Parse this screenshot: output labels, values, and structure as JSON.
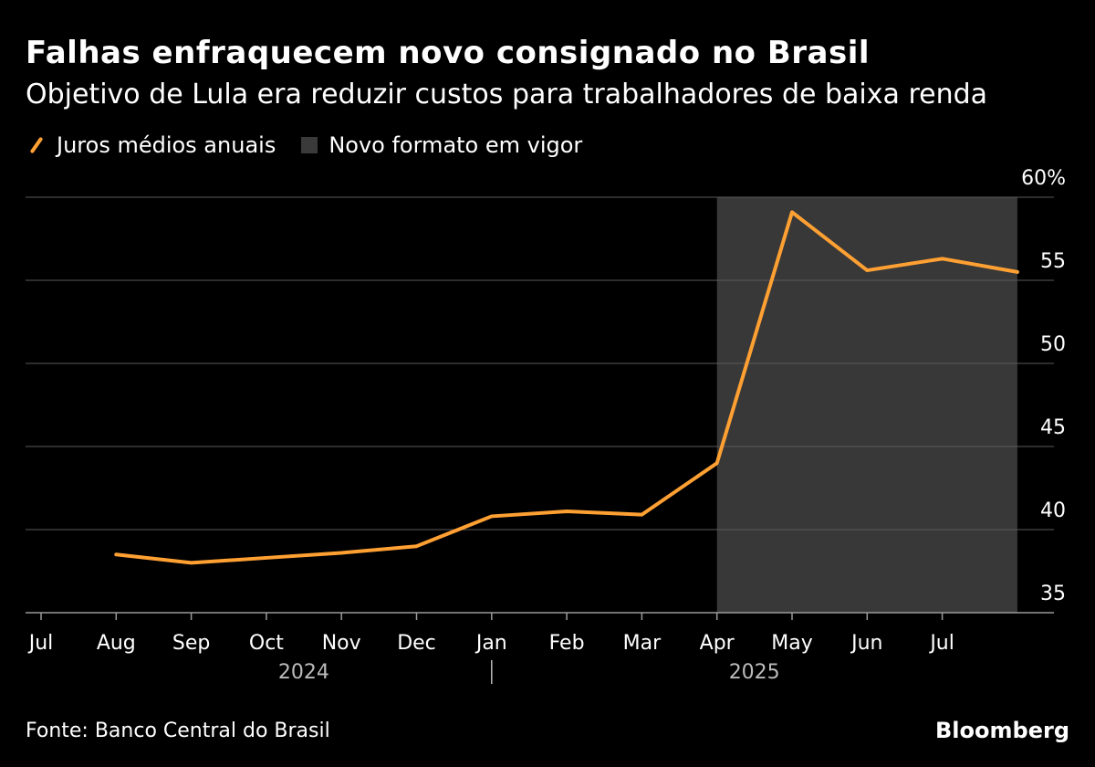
{
  "header": {
    "title": "Falhas enfraquecem novo consignado no Brasil",
    "subtitle": "Objetivo de Lula era reduzir custos para trabalhadores de baixa renda"
  },
  "legend": {
    "line_label": "Juros médios anuais",
    "shade_label": "Novo formato em vigor"
  },
  "footer": {
    "source": "Fonte: Banco Central do Brasil",
    "brand": "Bloomberg"
  },
  "colors": {
    "background": "#000000",
    "line": "#ffa033",
    "shade": "#383838",
    "grid": "#5a5a5a",
    "text": "#ffffff",
    "year_text": "#bbbbbb"
  },
  "chart_data": {
    "type": "line",
    "title": "Falhas enfraquecem novo consignado no Brasil",
    "subtitle": "Objetivo de Lula era reduzir custos para trabalhadores de baixa renda",
    "ylim": [
      35,
      60
    ],
    "yticks": [
      35,
      40,
      45,
      50,
      55,
      60
    ],
    "ytick_labels": [
      "35",
      "40",
      "45",
      "50",
      "55",
      "60%"
    ],
    "y_axis_side": "right",
    "grid": true,
    "legend_position": "top-left",
    "x_ticks": [
      {
        "date": "2024-07",
        "label": "Jul"
      },
      {
        "date": "2024-08",
        "label": "Aug"
      },
      {
        "date": "2024-09",
        "label": "Sep"
      },
      {
        "date": "2024-10",
        "label": "Oct"
      },
      {
        "date": "2024-11",
        "label": "Nov"
      },
      {
        "date": "2024-12",
        "label": "Dec"
      },
      {
        "date": "2025-01",
        "label": "Jan"
      },
      {
        "date": "2025-02",
        "label": "Feb"
      },
      {
        "date": "2025-03",
        "label": "Mar"
      },
      {
        "date": "2025-04",
        "label": "Apr"
      },
      {
        "date": "2025-05",
        "label": "May"
      },
      {
        "date": "2025-06",
        "label": "Jun"
      },
      {
        "date": "2025-07",
        "label": "Jul"
      }
    ],
    "xlim": [
      "2024-07",
      "2025-09"
    ],
    "year_labels": [
      {
        "date": "2024-10",
        "label": "2024"
      },
      {
        "date": "2025-04",
        "label": "2025"
      }
    ],
    "year_divider": "2025-01",
    "series": [
      {
        "name": "Juros médios anuais",
        "points": [
          {
            "x": "2024-08",
            "y": 38.5
          },
          {
            "x": "2024-09",
            "y": 38.0
          },
          {
            "x": "2024-10",
            "y": 38.3
          },
          {
            "x": "2024-11",
            "y": 38.6
          },
          {
            "x": "2024-12",
            "y": 39.0
          },
          {
            "x": "2025-01",
            "y": 40.8
          },
          {
            "x": "2025-02",
            "y": 41.1
          },
          {
            "x": "2025-03",
            "y": 40.9
          },
          {
            "x": "2025-04",
            "y": 44.0
          },
          {
            "x": "2025-05",
            "y": 59.1
          },
          {
            "x": "2025-06",
            "y": 55.6
          },
          {
            "x": "2025-07",
            "y": 56.3
          },
          {
            "x": "2025-08",
            "y": 55.5
          }
        ]
      }
    ],
    "shaded_region": {
      "name": "Novo formato em vigor",
      "from": "2025-04",
      "to": "2025-08"
    }
  }
}
